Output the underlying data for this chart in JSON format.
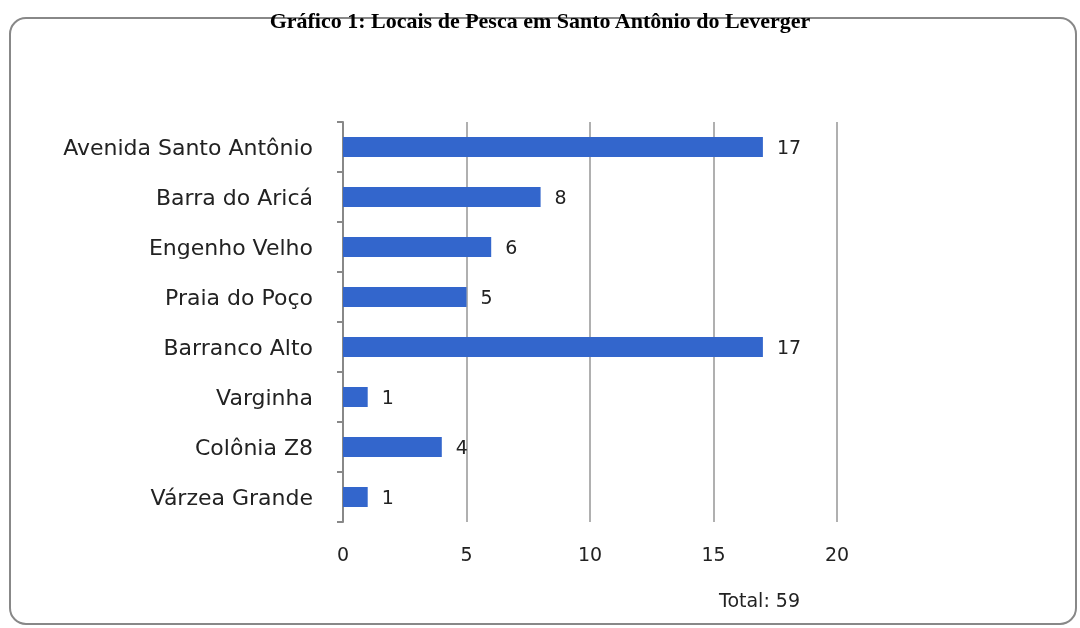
{
  "chart_data": {
    "type": "bar",
    "orientation": "horizontal",
    "title": "Gráfico 1: Locais de Pesca em Santo Antônio do Leverger",
    "categories": [
      "Avenida Santo Antônio",
      "Barra do Aricá",
      "Engenho Velho",
      "Praia do Poço",
      "Barranco Alto",
      "Varginha",
      "Colônia Z8",
      "Várzea Grande"
    ],
    "values": [
      17,
      8,
      6,
      5,
      17,
      1,
      4,
      1
    ],
    "color": "#3366cc",
    "xlim": [
      0,
      20
    ],
    "xticks": [
      0,
      5,
      10,
      15,
      20
    ],
    "grid": "x",
    "data_labels": true,
    "annotations": [
      "Total: 59"
    ]
  }
}
